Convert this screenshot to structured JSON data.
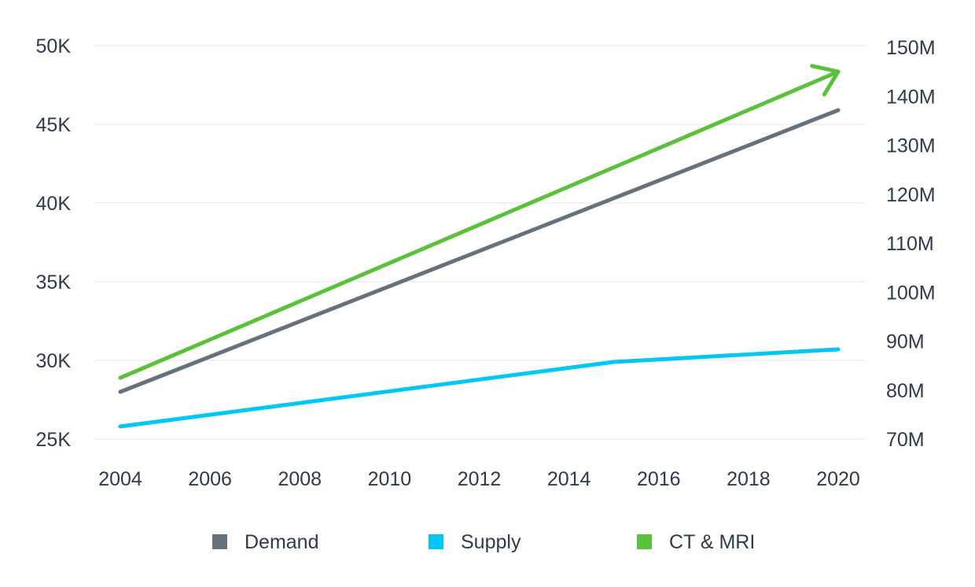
{
  "chart_data": {
    "type": "line",
    "title": "",
    "xlabel": "",
    "ylabel": "",
    "y2label": "",
    "x_ticks": [
      "2004",
      "2006",
      "2008",
      "2010",
      "2012",
      "2014",
      "2016",
      "2018",
      "2020"
    ],
    "x_range": [
      2004,
      2020
    ],
    "y_left": {
      "ticks": [
        25000,
        30000,
        35000,
        40000,
        45000,
        50000
      ],
      "tick_labels": [
        "25K",
        "30K",
        "35K",
        "40K",
        "45K",
        "50K"
      ],
      "range": [
        25000,
        50000
      ]
    },
    "y_right": {
      "ticks": [
        70,
        80,
        90,
        100,
        110,
        120,
        130,
        140,
        150
      ],
      "tick_labels": [
        "70M",
        "80M",
        "90M",
        "100M",
        "110M",
        "120M",
        "130M",
        "140M",
        "150M"
      ],
      "range": [
        70,
        150
      ],
      "unit": "M"
    },
    "grid": true,
    "legend_position": "bottom",
    "series": [
      {
        "name": "Demand",
        "axis": "left",
        "color": "#66717e",
        "points": [
          [
            2004,
            28000
          ],
          [
            2020,
            45900
          ]
        ]
      },
      {
        "name": "Supply",
        "axis": "left",
        "color": "#00c8f5",
        "points": [
          [
            2004,
            25800
          ],
          [
            2015,
            29900
          ],
          [
            2020,
            30700
          ]
        ]
      },
      {
        "name": "CT & MRI",
        "axis": "right",
        "color": "#5ac13a",
        "arrow": true,
        "points": [
          [
            2004,
            82.5
          ],
          [
            2020,
            145
          ]
        ]
      }
    ]
  }
}
